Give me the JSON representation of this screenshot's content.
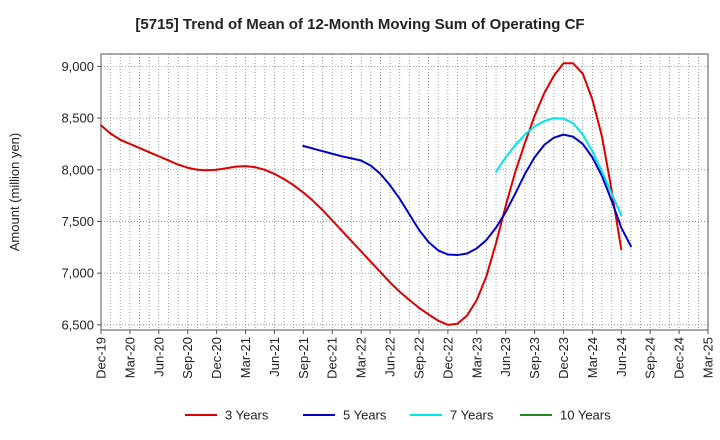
{
  "chart_data": {
    "type": "line",
    "title": "[5715]  Trend of Mean of 12-Month Moving Sum of Operating CF",
    "xlabel": "",
    "ylabel": "Amount (million yen)",
    "ylim": [
      6450,
      9120
    ],
    "yticks": [
      6500,
      7000,
      7500,
      8000,
      8500,
      9000
    ],
    "ytick_labels": [
      "6,500",
      "7,000",
      "7,500",
      "8,000",
      "8,500",
      "9,000"
    ],
    "x_categories": [
      "Dec-19",
      "Mar-20",
      "Jun-20",
      "Sep-20",
      "Dec-20",
      "Mar-21",
      "Jun-21",
      "Sep-21",
      "Dec-21",
      "Mar-22",
      "Jun-22",
      "Sep-22",
      "Dec-22",
      "Mar-23",
      "Jun-23",
      "Sep-23",
      "Dec-23",
      "Mar-24",
      "Jun-24",
      "Sep-24",
      "Dec-24",
      "Mar-25"
    ],
    "grid": true,
    "legend_position": "bottom",
    "series": [
      {
        "name": "3 Years",
        "color": "#dd0000",
        "points": [
          [
            0,
            8430
          ],
          [
            1,
            8350
          ],
          [
            2,
            8290
          ],
          [
            3,
            8250
          ],
          [
            4,
            8210
          ],
          [
            5,
            8170
          ],
          [
            6,
            8130
          ],
          [
            7,
            8090
          ],
          [
            8,
            8050
          ],
          [
            9,
            8020
          ],
          [
            10,
            8000
          ],
          [
            11,
            7995
          ],
          [
            12,
            8000
          ],
          [
            13,
            8015
          ],
          [
            14,
            8030
          ],
          [
            15,
            8035
          ],
          [
            16,
            8025
          ],
          [
            17,
            8000
          ],
          [
            18,
            7960
          ],
          [
            19,
            7910
          ],
          [
            20,
            7850
          ],
          [
            21,
            7780
          ],
          [
            22,
            7700
          ],
          [
            23,
            7610
          ],
          [
            24,
            7510
          ],
          [
            25,
            7410
          ],
          [
            26,
            7310
          ],
          [
            27,
            7210
          ],
          [
            28,
            7110
          ],
          [
            29,
            7010
          ],
          [
            30,
            6910
          ],
          [
            31,
            6820
          ],
          [
            32,
            6740
          ],
          [
            33,
            6665
          ],
          [
            34,
            6600
          ],
          [
            35,
            6540
          ],
          [
            36,
            6500
          ],
          [
            37,
            6510
          ],
          [
            38,
            6590
          ],
          [
            39,
            6740
          ],
          [
            40,
            6970
          ],
          [
            41,
            7290
          ],
          [
            42,
            7650
          ],
          [
            43,
            7980
          ],
          [
            44,
            8260
          ],
          [
            45,
            8520
          ],
          [
            46,
            8740
          ],
          [
            47,
            8910
          ],
          [
            48,
            9030
          ],
          [
            49,
            9030
          ],
          [
            50,
            8930
          ],
          [
            51,
            8680
          ],
          [
            52,
            8320
          ],
          [
            53,
            7800
          ],
          [
            54,
            7230
          ]
        ]
      },
      {
        "name": "5 Years",
        "color": "#0000cc",
        "points": [
          [
            21,
            8230
          ],
          [
            22,
            8205
          ],
          [
            23,
            8180
          ],
          [
            24,
            8155
          ],
          [
            25,
            8130
          ],
          [
            26,
            8110
          ],
          [
            27,
            8090
          ],
          [
            28,
            8040
          ],
          [
            29,
            7960
          ],
          [
            30,
            7850
          ],
          [
            31,
            7720
          ],
          [
            32,
            7570
          ],
          [
            33,
            7420
          ],
          [
            34,
            7300
          ],
          [
            35,
            7220
          ],
          [
            36,
            7180
          ],
          [
            37,
            7175
          ],
          [
            38,
            7190
          ],
          [
            39,
            7240
          ],
          [
            40,
            7320
          ],
          [
            41,
            7440
          ],
          [
            42,
            7590
          ],
          [
            43,
            7770
          ],
          [
            44,
            7960
          ],
          [
            45,
            8120
          ],
          [
            46,
            8240
          ],
          [
            47,
            8310
          ],
          [
            48,
            8340
          ],
          [
            49,
            8320
          ],
          [
            50,
            8250
          ],
          [
            51,
            8120
          ],
          [
            52,
            7940
          ],
          [
            53,
            7700
          ],
          [
            54,
            7440
          ],
          [
            55,
            7260
          ]
        ]
      },
      {
        "name": "7 Years",
        "color": "#00e5e5",
        "points": [
          [
            41,
            7980
          ],
          [
            42,
            8120
          ],
          [
            43,
            8240
          ],
          [
            44,
            8340
          ],
          [
            45,
            8420
          ],
          [
            46,
            8470
          ],
          [
            47,
            8500
          ],
          [
            48,
            8495
          ],
          [
            49,
            8450
          ],
          [
            50,
            8340
          ],
          [
            51,
            8180
          ],
          [
            52,
            7980
          ],
          [
            53,
            7770
          ],
          [
            54,
            7560
          ]
        ]
      },
      {
        "name": "10 Years",
        "color": "#228822",
        "points": []
      }
    ]
  }
}
